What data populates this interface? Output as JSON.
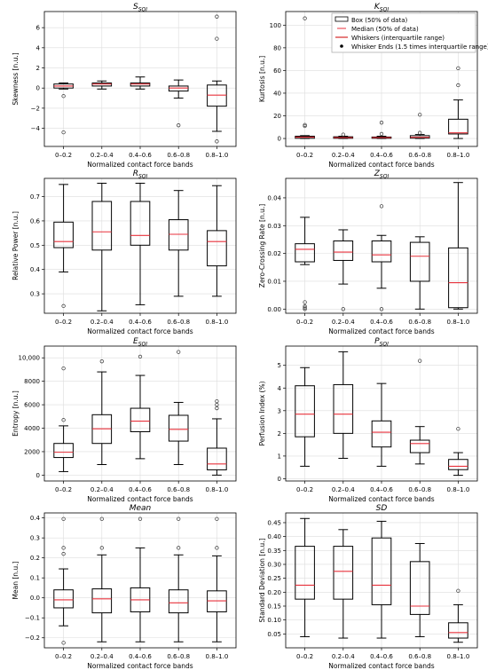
{
  "figure": {
    "legend": {
      "box": "Box (50% of data)",
      "median": "Median (50% of data)",
      "whiskers": "Whiskers (interquartile range)",
      "ends": "Whisker Ends (1.5 times interquartile range)"
    }
  },
  "chart_data": [
    {
      "type": "box",
      "title_main": "S",
      "title_sub": "SQI",
      "xlabel": "Normalized contact force bands",
      "ylabel": "Skewness [n.u.]",
      "categories": [
        "0–0.2",
        "0.2–0.4",
        "0.4–0.6",
        "0.6–0.8",
        "0.8–1.0"
      ],
      "ylim": [
        -5.8,
        7.6
      ],
      "yticks": [
        -4,
        -2,
        0,
        2,
        4,
        6
      ],
      "yticklabels": [
        "−4",
        "−2",
        "0",
        "2",
        "4",
        "6"
      ],
      "boxes": [
        {
          "whislo": -0.1,
          "q1": 0.0,
          "med": 0.2,
          "q3": 0.4,
          "whishi": 0.5,
          "fliers": [
            -0.8,
            -4.4
          ]
        },
        {
          "whislo": -0.1,
          "q1": 0.2,
          "med": 0.4,
          "q3": 0.5,
          "whishi": 0.7,
          "fliers": []
        },
        {
          "whislo": -0.1,
          "q1": 0.2,
          "med": 0.4,
          "q3": 0.5,
          "whishi": 1.1,
          "fliers": []
        },
        {
          "whislo": -1.0,
          "q1": -0.3,
          "med": 0.0,
          "q3": 0.2,
          "whishi": 0.8,
          "fliers": [
            -3.7
          ]
        },
        {
          "whislo": -4.3,
          "q1": -1.8,
          "med": -0.7,
          "q3": 0.3,
          "whishi": 0.7,
          "fliers": [
            4.9,
            7.1,
            -5.3
          ]
        }
      ],
      "legend": false
    },
    {
      "type": "box",
      "title_main": "K",
      "title_sub": "SQI",
      "xlabel": "Normalized contact force bands",
      "ylabel": "Kurtosis [n.u.]",
      "categories": [
        "0–0.2",
        "0.2–0.4",
        "0.4–0.6",
        "0.6–0.8",
        "0.8–1.0"
      ],
      "ylim": [
        -7,
        112
      ],
      "yticks": [
        0,
        20,
        40,
        60,
        80,
        100
      ],
      "yticklabels": [
        "0",
        "20",
        "40",
        "60",
        "80",
        "100"
      ],
      "boxes": [
        {
          "whislo": 0,
          "q1": 0.2,
          "med": 1.2,
          "q3": 2.0,
          "whishi": 2.5,
          "fliers": [
            11,
            12,
            106
          ]
        },
        {
          "whislo": 0,
          "q1": 0.2,
          "med": 0.8,
          "q3": 1.5,
          "whishi": 2.0,
          "fliers": [
            3.5
          ]
        },
        {
          "whislo": 0,
          "q1": 0.2,
          "med": 0.8,
          "q3": 1.3,
          "whishi": 2.0,
          "fliers": [
            4,
            14
          ]
        },
        {
          "whislo": 0,
          "q1": 0.3,
          "med": 1.1,
          "q3": 2.5,
          "whishi": 3.5,
          "fliers": [
            5,
            21
          ]
        },
        {
          "whislo": 0,
          "q1": 4,
          "med": 5,
          "q3": 17,
          "whishi": 34,
          "fliers": [
            47,
            62,
            108
          ]
        }
      ],
      "legend": true
    },
    {
      "type": "box",
      "title_main": "R",
      "title_sub": "SQI",
      "xlabel": "Normalized contact force bands",
      "ylabel": "Relative Power [n.u.]",
      "categories": [
        "0–0.2",
        "0.2–0.4",
        "0.4–0.6",
        "0.6–0.8",
        "0.8–1.0"
      ],
      "ylim": [
        0.22,
        0.775
      ],
      "yticks": [
        0.3,
        0.4,
        0.5,
        0.6,
        0.7
      ],
      "yticklabels": [
        "0.3",
        "0.4",
        "0.5",
        "0.6",
        "0.7"
      ],
      "boxes": [
        {
          "whislo": 0.39,
          "q1": 0.49,
          "med": 0.515,
          "q3": 0.595,
          "whishi": 0.75,
          "fliers": [
            0.25
          ]
        },
        {
          "whislo": 0.23,
          "q1": 0.48,
          "med": 0.555,
          "q3": 0.68,
          "whishi": 0.755,
          "fliers": []
        },
        {
          "whislo": 0.255,
          "q1": 0.5,
          "med": 0.54,
          "q3": 0.68,
          "whishi": 0.755,
          "fliers": []
        },
        {
          "whislo": 0.29,
          "q1": 0.48,
          "med": 0.545,
          "q3": 0.605,
          "whishi": 0.725,
          "fliers": []
        },
        {
          "whislo": 0.29,
          "q1": 0.415,
          "med": 0.515,
          "q3": 0.56,
          "whishi": 0.745,
          "fliers": []
        }
      ],
      "legend": false
    },
    {
      "type": "box",
      "title_main": "Z",
      "title_sub": "SQI",
      "xlabel": "Normalized contact force bands",
      "ylabel": "Zero-Crossing Rate [n.u.]",
      "categories": [
        "0–0.2",
        "0.2–0.4",
        "0.4–0.6",
        "0.6–0.8",
        "0.8–1.0"
      ],
      "ylim": [
        -0.0015,
        0.047
      ],
      "yticks": [
        0.0,
        0.01,
        0.02,
        0.03,
        0.04
      ],
      "yticklabels": [
        "0.00",
        "0.01",
        "0.02",
        "0.03",
        "0.04"
      ],
      "boxes": [
        {
          "whislo": 0.016,
          "q1": 0.017,
          "med": 0.0215,
          "q3": 0.0235,
          "whishi": 0.033,
          "fliers": [
            0.0025,
            0.001,
            0.0005,
            0.0
          ]
        },
        {
          "whislo": 0.009,
          "q1": 0.0175,
          "med": 0.0205,
          "q3": 0.0245,
          "whishi": 0.0285,
          "fliers": [
            0.0
          ]
        },
        {
          "whislo": 0.0075,
          "q1": 0.017,
          "med": 0.0195,
          "q3": 0.0245,
          "whishi": 0.0265,
          "fliers": [
            0.037,
            0.0
          ]
        },
        {
          "whislo": 0.0,
          "q1": 0.01,
          "med": 0.019,
          "q3": 0.024,
          "whishi": 0.026,
          "fliers": []
        },
        {
          "whislo": 0.0,
          "q1": 0.0005,
          "med": 0.0095,
          "q3": 0.022,
          "whishi": 0.0455,
          "fliers": []
        }
      ],
      "legend": false
    },
    {
      "type": "box",
      "title_main": "E",
      "title_sub": "SQI",
      "xlabel": "Normalized contact force bands",
      "ylabel": "Entropy [n.u.]",
      "categories": [
        "0–0.2",
        "0.2–0.4",
        "0.4–0.6",
        "0.6–0.8",
        "0.8–1.0"
      ],
      "ylim": [
        -500,
        11000
      ],
      "yticks": [
        0,
        2000,
        4000,
        6000,
        8000,
        10000
      ],
      "yticklabels": [
        "0",
        "2000",
        "4000",
        "6000",
        "8000",
        "10,000"
      ],
      "boxes": [
        {
          "whislo": 300,
          "q1": 1500,
          "med": 1950,
          "q3": 2700,
          "whishi": 4200,
          "fliers": [
            4700,
            9100
          ]
        },
        {
          "whislo": 900,
          "q1": 2700,
          "med": 3950,
          "q3": 5150,
          "whishi": 8800,
          "fliers": [
            9700
          ]
        },
        {
          "whislo": 1400,
          "q1": 3700,
          "med": 4600,
          "q3": 5700,
          "whishi": 8500,
          "fliers": [
            10100
          ]
        },
        {
          "whislo": 900,
          "q1": 2900,
          "med": 3900,
          "q3": 5100,
          "whishi": 6200,
          "fliers": [
            10500
          ]
        },
        {
          "whislo": 0,
          "q1": 450,
          "med": 950,
          "q3": 2300,
          "whishi": 4800,
          "fliers": [
            5700,
            6000,
            6300
          ]
        }
      ],
      "legend": false
    },
    {
      "type": "box",
      "title_main": "P",
      "title_sub": "SQI",
      "xlabel": "Normalized contact force bands",
      "ylabel": "Perfusion Index (%)",
      "categories": [
        "0–0.2",
        "0.2–0.4",
        "0.4–0.6",
        "0.6–0.8",
        "0.8–1.0"
      ],
      "ylim": [
        -0.1,
        5.85
      ],
      "yticks": [
        0,
        1,
        2,
        3,
        4,
        5
      ],
      "yticklabels": [
        "0",
        "1",
        "2",
        "3",
        "4",
        "5"
      ],
      "boxes": [
        {
          "whislo": 0.55,
          "q1": 1.85,
          "med": 2.85,
          "q3": 4.1,
          "whishi": 4.9,
          "fliers": []
        },
        {
          "whislo": 0.9,
          "q1": 2.0,
          "med": 2.85,
          "q3": 4.15,
          "whishi": 5.6,
          "fliers": []
        },
        {
          "whislo": 0.55,
          "q1": 1.4,
          "med": 2.05,
          "q3": 2.55,
          "whishi": 4.2,
          "fliers": []
        },
        {
          "whislo": 0.65,
          "q1": 1.15,
          "med": 1.55,
          "q3": 1.7,
          "whishi": 2.3,
          "fliers": [
            5.2
          ]
        },
        {
          "whislo": 0.15,
          "q1": 0.4,
          "med": 0.55,
          "q3": 0.85,
          "whishi": 1.15,
          "fliers": [
            2.2
          ]
        }
      ],
      "legend": false
    },
    {
      "type": "box",
      "title_main": "Mean",
      "title_sub": "",
      "xlabel": "Normalized contact force bands",
      "ylabel": "Mean [n.u.]",
      "categories": [
        "0–0.2",
        "0.2–0.4",
        "0.4–0.6",
        "0.6–0.8",
        "0.8–1.0"
      ],
      "ylim": [
        -0.25,
        0.425
      ],
      "yticks": [
        -0.2,
        -0.1,
        0.0,
        0.1,
        0.2,
        0.3,
        0.4
      ],
      "yticklabels": [
        "−0.2",
        "−0.1",
        "0.0",
        "0.1",
        "0.2",
        "0.3",
        "0.4"
      ],
      "boxes": [
        {
          "whislo": -0.14,
          "q1": -0.05,
          "med": -0.01,
          "q3": 0.04,
          "whishi": 0.145,
          "fliers": [
            0.22,
            0.25,
            0.395,
            -0.225
          ]
        },
        {
          "whislo": -0.22,
          "q1": -0.075,
          "med": -0.005,
          "q3": 0.045,
          "whishi": 0.215,
          "fliers": [
            0.25,
            0.395
          ]
        },
        {
          "whislo": -0.22,
          "q1": -0.07,
          "med": -0.01,
          "q3": 0.05,
          "whishi": 0.25,
          "fliers": [
            0.395
          ]
        },
        {
          "whislo": -0.22,
          "q1": -0.075,
          "med": -0.025,
          "q3": 0.04,
          "whishi": 0.215,
          "fliers": [
            0.25,
            0.395
          ]
        },
        {
          "whislo": -0.22,
          "q1": -0.07,
          "med": -0.015,
          "q3": 0.035,
          "whishi": 0.21,
          "fliers": [
            0.25,
            0.395
          ]
        }
      ],
      "legend": false
    },
    {
      "type": "box",
      "title_main": "SD",
      "title_sub": "",
      "xlabel": "Normalized contact force bands",
      "ylabel": "Standard Deviation [n.u.]",
      "categories": [
        "0–0.2",
        "0.2–0.4",
        "0.4–0.6",
        "0.6–0.8",
        "0.8–1.0"
      ],
      "ylim": [
        0.0,
        0.485
      ],
      "yticks": [
        0.05,
        0.1,
        0.15,
        0.2,
        0.25,
        0.3,
        0.35,
        0.4,
        0.45
      ],
      "yticklabels": [
        "0.05",
        "0.10",
        "0.15",
        "0.20",
        "0.25",
        "0.30",
        "0.35",
        "0.40",
        "0.45"
      ],
      "boxes": [
        {
          "whislo": 0.04,
          "q1": 0.175,
          "med": 0.225,
          "q3": 0.365,
          "whishi": 0.465,
          "fliers": []
        },
        {
          "whislo": 0.035,
          "q1": 0.175,
          "med": 0.275,
          "q3": 0.365,
          "whishi": 0.425,
          "fliers": []
        },
        {
          "whislo": 0.035,
          "q1": 0.155,
          "med": 0.225,
          "q3": 0.395,
          "whishi": 0.455,
          "fliers": []
        },
        {
          "whislo": 0.04,
          "q1": 0.12,
          "med": 0.15,
          "q3": 0.31,
          "whishi": 0.375,
          "fliers": []
        },
        {
          "whislo": 0.02,
          "q1": 0.035,
          "med": 0.055,
          "q3": 0.09,
          "whishi": 0.155,
          "fliers": [
            0.205
          ]
        }
      ],
      "legend": false
    }
  ]
}
